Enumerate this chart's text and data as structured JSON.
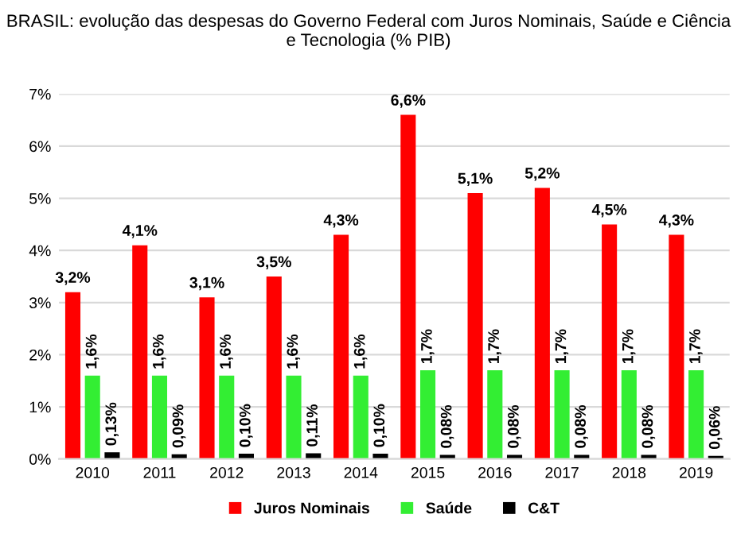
{
  "chart_data": {
    "type": "bar",
    "title": "BRASIL: evolução das despesas do Governo Federal com Juros Nominais, Saúde e Ciência e Tecnologia (% PIB)",
    "categories": [
      "2010",
      "2011",
      "2012",
      "2013",
      "2014",
      "2015",
      "2016",
      "2017",
      "2018",
      "2019"
    ],
    "series": [
      {
        "name": "Juros Nominais",
        "color": "#ff0000",
        "values": [
          3.2,
          4.1,
          3.1,
          3.5,
          4.3,
          6.6,
          5.1,
          5.2,
          4.5,
          4.3
        ],
        "value_labels": [
          "3,2%",
          "4,1%",
          "3,1%",
          "3,5%",
          "4,3%",
          "6,6%",
          "5,1%",
          "5,2%",
          "4,5%",
          "4,3%"
        ]
      },
      {
        "name": "Saúde",
        "color": "#33ee33",
        "values": [
          1.6,
          1.6,
          1.6,
          1.6,
          1.6,
          1.7,
          1.7,
          1.7,
          1.7,
          1.7
        ],
        "value_labels": [
          "1,6%",
          "1,6%",
          "1,6%",
          "1,6%",
          "1,6%",
          "1,7%",
          "1,7%",
          "1,7%",
          "1,7%",
          "1,7%"
        ]
      },
      {
        "name": "C&T",
        "color": "#000000",
        "values": [
          0.13,
          0.09,
          0.1,
          0.11,
          0.1,
          0.08,
          0.08,
          0.08,
          0.08,
          0.06
        ],
        "value_labels": [
          "0,13%",
          "0,09%",
          "0,10%",
          "0,11%",
          "0,10%",
          "0,08%",
          "0,08%",
          "0,08%",
          "0,08%",
          "0,06%"
        ]
      }
    ],
    "ylim": [
      0,
      7
    ],
    "yticks": [
      {
        "value": 0,
        "label": "0%"
      },
      {
        "value": 1,
        "label": "1%"
      },
      {
        "value": 2,
        "label": "2%"
      },
      {
        "value": 3,
        "label": "3%"
      },
      {
        "value": 4,
        "label": "4%"
      },
      {
        "value": 5,
        "label": "5%"
      },
      {
        "value": 6,
        "label": "6%"
      },
      {
        "value": 7,
        "label": "7%"
      }
    ],
    "grid": "y",
    "legend": "bottom"
  }
}
